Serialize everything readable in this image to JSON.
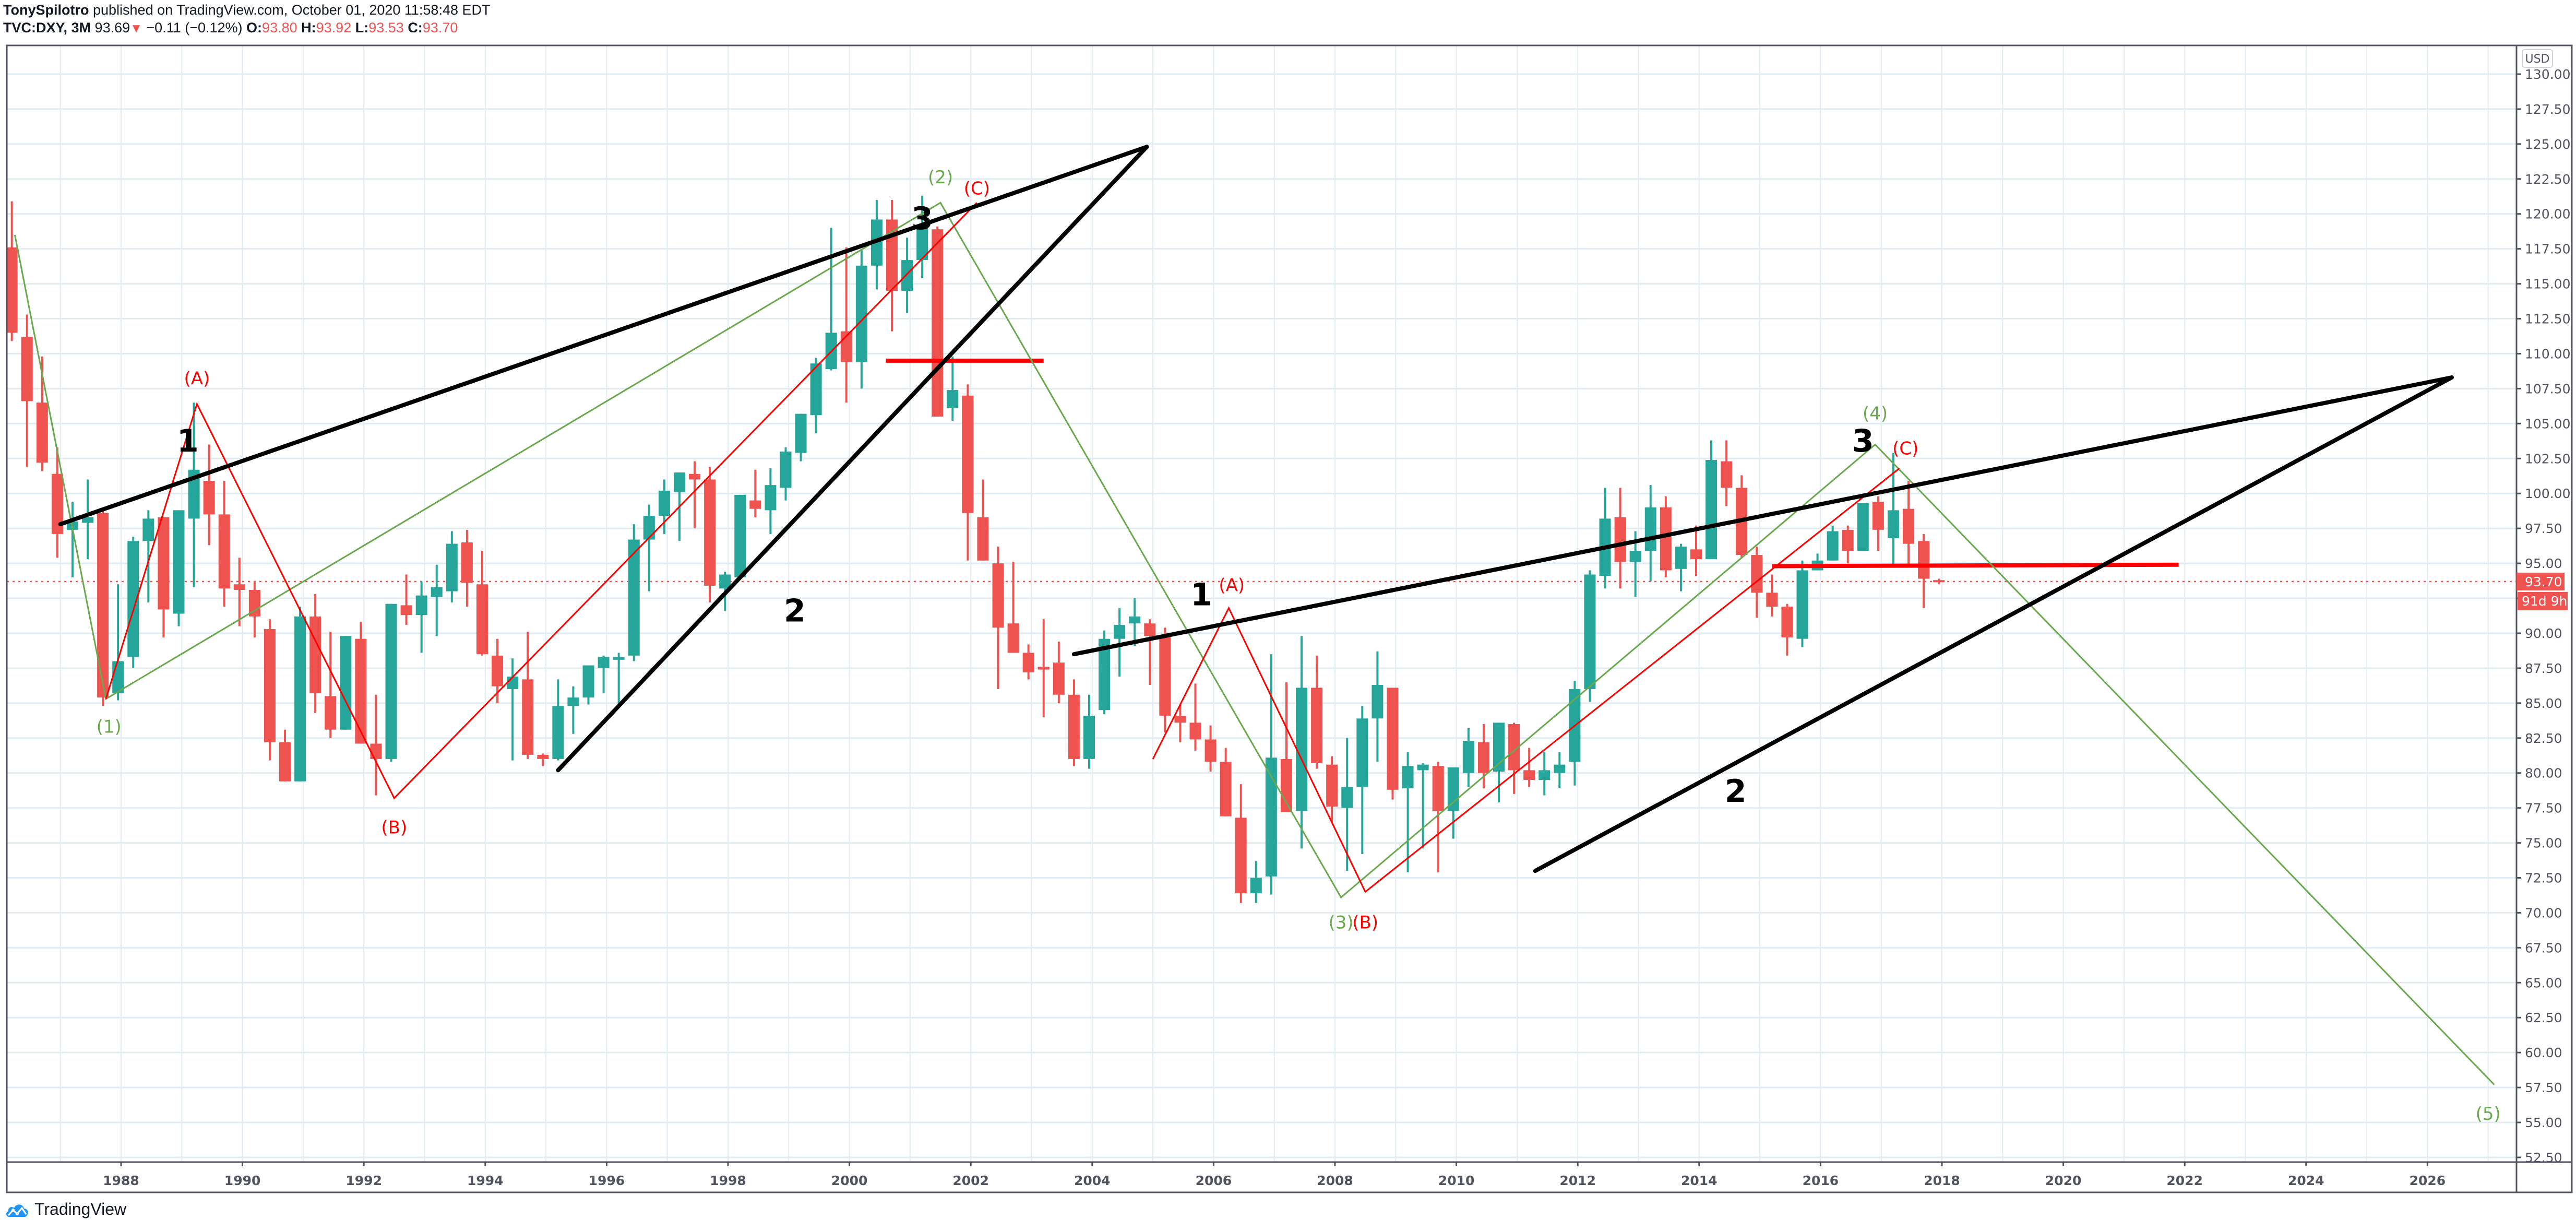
{
  "header": {
    "author": "TonySpilotro",
    "published_text": "published on TradingView.com, October 01, 2020 11:58:48 EDT",
    "symbol": "TVC:DXY, 3M",
    "last": "93.69",
    "change": "−0.11 (−0.12%)",
    "open_label": "O:",
    "open": "93.80",
    "high_label": "H:",
    "high": "93.92",
    "low_label": "L:",
    "low": "93.53",
    "close_label": "C:",
    "close": "93.70"
  },
  "price_axis": {
    "currency": "USD",
    "current_price_label": "93.70",
    "countdown_label": "91d 9h"
  },
  "footer": {
    "brand": "TradingView",
    "logo_icon": "tradingview-cloud-icon"
  },
  "colors": {
    "up": "#26a69a",
    "down": "#ef5350",
    "grid": "#e1ecf2",
    "axis": "#50535e",
    "trend": "#000000",
    "wave_green": "#6aa84f",
    "wave_red": "#ff0000",
    "hline_red": "#ff0000"
  },
  "chart_data": {
    "type": "candlestick",
    "title": "TVC:DXY, 3M",
    "xlabel": "",
    "ylabel": "USD",
    "ylim": [
      52.5,
      130.0
    ],
    "xlim_years": [
      1986.1,
      2027.8
    ],
    "x_ticks": [
      "1988",
      "1990",
      "1992",
      "1994",
      "1996",
      "1998",
      "2000",
      "2002",
      "2004",
      "2006",
      "2008",
      "2010",
      "2012",
      "2014",
      "2016",
      "2018",
      "2020",
      "2022",
      "2024",
      "2026"
    ],
    "y_ticks": [
      "130.00",
      "127.50",
      "125.00",
      "122.50",
      "120.00",
      "117.50",
      "115.00",
      "112.50",
      "110.00",
      "107.50",
      "105.00",
      "102.50",
      "100.00",
      "97.50",
      "95.00",
      "92.50",
      "90.00",
      "87.50",
      "85.00",
      "82.50",
      "80.00",
      "77.50",
      "75.00",
      "72.50",
      "70.00",
      "67.50",
      "65.00",
      "62.50",
      "60.00",
      "57.50",
      "55.00",
      "52.50"
    ],
    "grid": true,
    "current_price": 93.7,
    "start_year": 1986.2,
    "period_years": 0.25,
    "candles_ohlc": [
      [
        117.6,
        120.9,
        110.9,
        111.5
      ],
      [
        111.2,
        112.8,
        101.9,
        106.6
      ],
      [
        106.5,
        109.8,
        101.6,
        102.2
      ],
      [
        101.4,
        103.3,
        95.4,
        97.1
      ],
      [
        97.4,
        99.4,
        94.0,
        98.0
      ],
      [
        97.9,
        101.0,
        95.3,
        98.3
      ],
      [
        98.6,
        99.0,
        84.8,
        85.4
      ],
      [
        85.7,
        93.5,
        85.2,
        88.0
      ],
      [
        88.3,
        96.9,
        87.5,
        96.6
      ],
      [
        96.6,
        98.8,
        92.2,
        98.2
      ],
      [
        98.3,
        98.2,
        89.7,
        91.7
      ],
      [
        91.4,
        98.8,
        90.5,
        98.8
      ],
      [
        98.2,
        106.5,
        93.3,
        101.7
      ],
      [
        100.9,
        103.5,
        96.3,
        98.5
      ],
      [
        98.5,
        100.9,
        91.9,
        93.2
      ],
      [
        93.5,
        95.4,
        90.5,
        93.1
      ],
      [
        93.1,
        93.7,
        89.7,
        91.2
      ],
      [
        90.3,
        91.0,
        80.9,
        82.2
      ],
      [
        82.2,
        83.1,
        79.6,
        79.4
      ],
      [
        79.4,
        91.9,
        80.3,
        91.2
      ],
      [
        91.2,
        92.8,
        84.3,
        85.7
      ],
      [
        85.5,
        90.1,
        82.5,
        83.1
      ],
      [
        83.1,
        89.8,
        84.1,
        89.8
      ],
      [
        89.6,
        90.8,
        82.3,
        82.1
      ],
      [
        82.1,
        85.6,
        78.4,
        81.0
      ],
      [
        81.0,
        92.1,
        80.8,
        92.1
      ],
      [
        92.0,
        94.2,
        90.6,
        91.3
      ],
      [
        91.3,
        93.7,
        88.6,
        92.7
      ],
      [
        92.6,
        94.9,
        89.8,
        93.3
      ],
      [
        93.0,
        97.3,
        92.2,
        96.4
      ],
      [
        96.5,
        97.4,
        91.9,
        93.6
      ],
      [
        93.5,
        95.9,
        88.4,
        88.5
      ],
      [
        88.4,
        89.6,
        85.0,
        86.2
      ],
      [
        86.0,
        88.2,
        80.9,
        86.9
      ],
      [
        86.7,
        90.1,
        81.0,
        81.3
      ],
      [
        81.3,
        81.4,
        80.5,
        81.0
      ],
      [
        81.0,
        86.7,
        80.9,
        84.8
      ],
      [
        84.8,
        86.2,
        82.8,
        85.4
      ],
      [
        85.4,
        87.7,
        84.9,
        87.7
      ],
      [
        87.5,
        88.4,
        85.7,
        88.3
      ],
      [
        88.1,
        88.6,
        84.7,
        88.3
      ],
      [
        88.4,
        97.8,
        88.0,
        96.7
      ],
      [
        96.7,
        99.2,
        93.0,
        98.4
      ],
      [
        98.4,
        101.0,
        97.1,
        100.2
      ],
      [
        100.1,
        101.4,
        96.6,
        101.5
      ],
      [
        101.4,
        102.3,
        97.5,
        101.0
      ],
      [
        101.0,
        101.9,
        92.2,
        93.4
      ],
      [
        93.2,
        94.4,
        91.6,
        94.2
      ],
      [
        94.0,
        99.9,
        94.9,
        99.9
      ],
      [
        99.5,
        101.7,
        98.3,
        98.9
      ],
      [
        98.8,
        101.8,
        97.1,
        100.6
      ],
      [
        100.4,
        103.3,
        99.5,
        103.0
      ],
      [
        102.9,
        104.7,
        102.3,
        105.7
      ],
      [
        105.6,
        109.7,
        104.3,
        109.3
      ],
      [
        108.9,
        119.0,
        108.8,
        111.5
      ],
      [
        111.6,
        117.6,
        106.5,
        109.4
      ],
      [
        109.4,
        117.4,
        107.5,
        116.3
      ],
      [
        116.3,
        121.0,
        114.6,
        119.6
      ],
      [
        119.6,
        121.0,
        111.6,
        114.5
      ],
      [
        114.5,
        118.3,
        112.9,
        116.7
      ],
      [
        116.7,
        121.3,
        115.4,
        119.2
      ],
      [
        118.9,
        119.1,
        105.7,
        105.5
      ],
      [
        106.1,
        109.8,
        105.2,
        107.4
      ],
      [
        107.0,
        107.8,
        95.2,
        98.6
      ],
      [
        98.3,
        101.0,
        96.4,
        95.2
      ],
      [
        95.0,
        96.2,
        86.0,
        90.4
      ],
      [
        90.7,
        95.1,
        89.8,
        88.6
      ],
      [
        88.6,
        89.2,
        86.7,
        87.2
      ],
      [
        87.6,
        91.0,
        84.0,
        87.4
      ],
      [
        87.9,
        89.4,
        85.0,
        85.6
      ],
      [
        85.6,
        86.7,
        80.5,
        81.0
      ],
      [
        81.0,
        85.6,
        80.3,
        84.1
      ],
      [
        84.5,
        90.2,
        84.2,
        89.6
      ],
      [
        89.6,
        91.8,
        86.9,
        90.6
      ],
      [
        90.7,
        92.5,
        89.1,
        91.2
      ],
      [
        90.7,
        91.0,
        86.3,
        89.8
      ],
      [
        89.8,
        90.4,
        82.9,
        84.1
      ],
      [
        84.1,
        84.9,
        82.2,
        83.6
      ],
      [
        83.6,
        86.4,
        81.6,
        82.4
      ],
      [
        82.4,
        83.4,
        80.1,
        80.8
      ],
      [
        80.8,
        81.8,
        76.9,
        76.9
      ],
      [
        76.8,
        79.2,
        70.7,
        71.4
      ],
      [
        71.4,
        73.7,
        70.7,
        72.5
      ],
      [
        72.6,
        88.5,
        71.3,
        81.1
      ],
      [
        81.0,
        86.5,
        77.4,
        77.2
      ],
      [
        77.3,
        89.8,
        74.6,
        86.1
      ],
      [
        86.1,
        88.4,
        80.3,
        80.7
      ],
      [
        80.6,
        81.2,
        76.4,
        77.6
      ],
      [
        77.5,
        82.5,
        73.0,
        79.0
      ],
      [
        79.0,
        84.8,
        74.2,
        83.9
      ],
      [
        83.9,
        88.7,
        80.8,
        86.3
      ],
      [
        86.1,
        86.1,
        78.1,
        78.8
      ],
      [
        78.9,
        81.5,
        72.9,
        80.5
      ],
      [
        80.2,
        80.7,
        74.6,
        80.6
      ],
      [
        80.5,
        80.8,
        72.9,
        77.3
      ],
      [
        77.3,
        79.4,
        75.3,
        80.4
      ],
      [
        80.0,
        83.2,
        79.0,
        82.3
      ],
      [
        82.2,
        83.5,
        78.9,
        80.0
      ],
      [
        80.1,
        82.7,
        77.9,
        83.6
      ],
      [
        83.5,
        83.6,
        78.5,
        80.2
      ],
      [
        80.2,
        81.8,
        79.0,
        79.5
      ],
      [
        79.5,
        81.5,
        78.4,
        80.2
      ],
      [
        80.0,
        81.5,
        78.9,
        80.6
      ],
      [
        80.8,
        86.6,
        79.1,
        86.0
      ],
      [
        86.0,
        94.5,
        85.1,
        94.2
      ],
      [
        94.1,
        100.4,
        93.2,
        98.2
      ],
      [
        98.3,
        100.4,
        93.2,
        95.1
      ],
      [
        95.1,
        97.3,
        92.6,
        95.9
      ],
      [
        95.9,
        100.6,
        93.7,
        99.0
      ],
      [
        99.0,
        99.8,
        94.0,
        94.5
      ],
      [
        94.6,
        96.4,
        93.0,
        96.2
      ],
      [
        96.0,
        97.7,
        94.1,
        95.3
      ],
      [
        95.3,
        103.8,
        95.9,
        102.4
      ],
      [
        102.3,
        103.8,
        99.1,
        100.4
      ],
      [
        100.4,
        101.3,
        95.4,
        95.6
      ],
      [
        95.6,
        96.2,
        91.1,
        92.9
      ],
      [
        92.9,
        94.2,
        91.2,
        91.9
      ],
      [
        91.9,
        92.1,
        88.4,
        89.7
      ],
      [
        89.6,
        95.2,
        89.0,
        94.5
      ],
      [
        94.5,
        95.7,
        94.6,
        95.2
      ],
      [
        95.2,
        97.7,
        95.7,
        97.3
      ],
      [
        97.4,
        97.7,
        95.0,
        95.9
      ],
      [
        95.9,
        98.6,
        96.2,
        99.3
      ],
      [
        99.4,
        99.8,
        95.9,
        97.4
      ],
      [
        96.8,
        102.9,
        94.8,
        98.8
      ],
      [
        98.9,
        100.9,
        94.7,
        96.4
      ],
      [
        96.6,
        97.1,
        91.8,
        93.9
      ],
      [
        93.8,
        93.9,
        93.5,
        93.7
      ]
    ],
    "drawings": {
      "trendlines_black": [
        {
          "from": [
            1987.0,
            97.8
          ],
          "to": [
            2004.9,
            124.8
          ]
        },
        {
          "from": [
            1995.2,
            80.2
          ],
          "to": [
            2004.9,
            124.8
          ]
        },
        {
          "from": [
            2003.7,
            88.5
          ],
          "to": [
            2026.4,
            108.3
          ]
        },
        {
          "from": [
            2011.3,
            73.0
          ],
          "to": [
            2026.4,
            108.3
          ]
        }
      ],
      "hlines_red": [
        {
          "from": [
            2000.6,
            109.5
          ],
          "to": [
            2003.2,
            109.5
          ]
        },
        {
          "from": [
            2015.2,
            94.8
          ],
          "to": [
            2021.9,
            94.9
          ]
        }
      ],
      "wave_green_path": [
        [
          1986.25,
          118.5
        ],
        [
          1987.75,
          85.3
        ],
        [
          2001.5,
          120.8
        ],
        [
          2008.1,
          71.1
        ],
        [
          2016.9,
          103.5
        ],
        [
          2027.1,
          57.7
        ]
      ],
      "wave_red_paths": [
        [
          [
            1987.75,
            85.3
          ],
          [
            1989.25,
            106.4
          ],
          [
            1992.5,
            78.2
          ],
          [
            2002.1,
            120.8
          ]
        ],
        [
          [
            2005.0,
            81.0
          ],
          [
            2006.25,
            91.8
          ],
          [
            2008.5,
            71.5
          ],
          [
            2017.3,
            101.8
          ]
        ]
      ],
      "labels": [
        {
          "text": "(1)",
          "color": "green",
          "year": 1987.8,
          "price": 84.0,
          "anchor": "below"
        },
        {
          "text": "(2)",
          "color": "green",
          "year": 2001.5,
          "price": 122.2,
          "anchor": "above"
        },
        {
          "text": "(3)",
          "color": "green",
          "year": 2008.1,
          "price": 70.0,
          "anchor": "below"
        },
        {
          "text": "(4)",
          "color": "green",
          "year": 2016.9,
          "price": 105.3,
          "anchor": "above"
        },
        {
          "text": "(5)",
          "color": "green",
          "year": 2027.0,
          "price": 56.3,
          "anchor": "below"
        },
        {
          "text": "(A)",
          "color": "red",
          "year": 1989.25,
          "price": 107.8,
          "anchor": "above"
        },
        {
          "text": "(B)",
          "color": "red",
          "year": 1992.5,
          "price": 76.8,
          "anchor": "below"
        },
        {
          "text": "(C)",
          "color": "red",
          "year": 2002.1,
          "price": 121.4,
          "anchor": "above"
        },
        {
          "text": "(A)",
          "color": "red",
          "year": 2006.3,
          "price": 93.0,
          "anchor": "above"
        },
        {
          "text": "(B)",
          "color": "red",
          "year": 2008.5,
          "price": 70.0,
          "anchor": "below"
        },
        {
          "text": "(C)",
          "color": "red",
          "year": 2017.4,
          "price": 102.8,
          "anchor": "above"
        },
        {
          "text": "1",
          "color": "black",
          "year": 1989.1,
          "price": 103.0,
          "anchor": "above"
        },
        {
          "text": "2",
          "color": "black",
          "year": 1999.1,
          "price": 92.4,
          "anchor": "below"
        },
        {
          "text": "3",
          "color": "black",
          "year": 2001.2,
          "price": 118.9,
          "anchor": "above"
        },
        {
          "text": "1",
          "color": "black",
          "year": 2005.8,
          "price": 92.0,
          "anchor": "above"
        },
        {
          "text": "2",
          "color": "black",
          "year": 2014.6,
          "price": 79.5,
          "anchor": "below"
        },
        {
          "text": "3",
          "color": "black",
          "year": 2016.7,
          "price": 103.0,
          "anchor": "above"
        }
      ]
    }
  }
}
